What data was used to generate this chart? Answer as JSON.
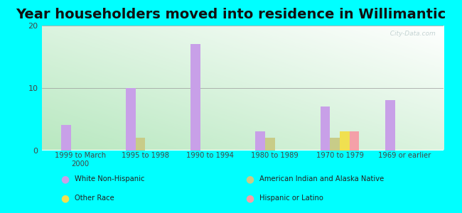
{
  "title": "Year householders moved into residence in Willimantic",
  "categories": [
    "1999 to March\n2000",
    "1995 to 1998",
    "1990 to 1994",
    "1980 to 1989",
    "1970 to 1979",
    "1969 or earlier"
  ],
  "series": {
    "White Non-Hispanic": [
      4,
      10,
      17,
      3,
      7,
      8
    ],
    "American Indian and Alaska Native": [
      0,
      2,
      0,
      2,
      2,
      0
    ],
    "Other Race": [
      0,
      0,
      0,
      0,
      3,
      0
    ],
    "Hispanic or Latino": [
      0,
      0,
      0,
      0,
      3,
      0
    ]
  },
  "colors": {
    "White Non-Hispanic": "#c8a0e8",
    "American Indian and Alaska Native": "#c8cc88",
    "Other Race": "#f0e050",
    "Hispanic or Latino": "#f4a0a8"
  },
  "ylim": [
    0,
    20
  ],
  "yticks": [
    0,
    10,
    20
  ],
  "background_color": "#00ffff",
  "title_fontsize": 14,
  "bar_width": 0.15,
  "watermark": "  City-Data.com",
  "legend": [
    [
      "White Non-Hispanic",
      "#c8a0e8"
    ],
    [
      "Other Race",
      "#f0e050"
    ],
    [
      "American Indian and Alaska Native",
      "#c8cc88"
    ],
    [
      "Hispanic or Latino",
      "#f4a0a8"
    ]
  ]
}
